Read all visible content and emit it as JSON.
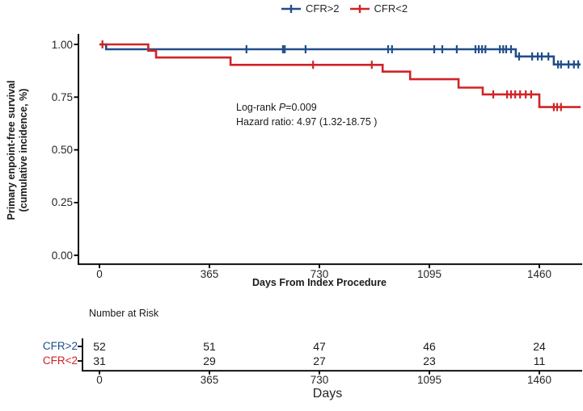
{
  "legend": {
    "items": [
      {
        "label": "CFR>2",
        "color": "#204e8a"
      },
      {
        "label": "CFR<2",
        "color": "#d02327"
      }
    ]
  },
  "y_axis": {
    "label_line1": "Primary enpoint-free survival",
    "label_line2": "(cumulative incidence, %)",
    "tick_labels": [
      "1.00",
      "0.75",
      "0.50",
      "0.25",
      "0.00"
    ],
    "tick_values": [
      1.0,
      0.75,
      0.5,
      0.25,
      0.0
    ]
  },
  "x_axis": {
    "label": "Days From Index Procedure",
    "tick_labels": [
      "0",
      "365",
      "730",
      "1095",
      "1460"
    ],
    "tick_values": [
      0,
      365,
      730,
      1095,
      1460
    ]
  },
  "annotation": {
    "line1_prefix": "Log-rank ",
    "line1_italic": "P",
    "line1_suffix": "=0.009",
    "line2": "Hazard ratio: 4.97 (1.32-18.75 )"
  },
  "risk_table": {
    "title": "Number at Risk",
    "axis_label": "Days",
    "tick_labels": [
      "0",
      "365",
      "730",
      "1095",
      "1460"
    ],
    "rows": [
      {
        "label": "CFR>2",
        "color": "#204e8a",
        "values": [
          "52",
          "51",
          "47",
          "46",
          "24"
        ]
      },
      {
        "label": "CFR<2",
        "color": "#d02327",
        "values": [
          "31",
          "29",
          "27",
          "23",
          "11"
        ]
      }
    ]
  },
  "chart_data": {
    "type": "line",
    "subtype": "kaplan-meier-step",
    "title": "",
    "xlabel": "Days From Index Procedure",
    "ylabel": "Primary enpoint-free survival (cumulative incidence, %)",
    "xlim": [
      0,
      1600
    ],
    "ylim": [
      0.0,
      1.0
    ],
    "x_ticks": [
      0,
      365,
      730,
      1095,
      1460
    ],
    "y_ticks": [
      0.0,
      0.25,
      0.5,
      0.75,
      1.0
    ],
    "grid": false,
    "legend_position": "top-center",
    "annotations": [
      "Log-rank P=0.009",
      "Hazard ratio: 4.97 (1.32-18.75 )"
    ],
    "series": [
      {
        "name": "CFR>2",
        "color": "#204e8a",
        "step_points": [
          [
            0,
            1.0
          ],
          [
            22,
            1.0
          ],
          [
            22,
            0.977
          ],
          [
            1382,
            0.977
          ],
          [
            1382,
            0.943
          ],
          [
            1508,
            0.943
          ],
          [
            1508,
            0.905
          ],
          [
            1597,
            0.905
          ]
        ],
        "censor_days": [
          488,
          609,
          615,
          684,
          958,
          971,
          1111,
          1138,
          1186,
          1248,
          1259,
          1270,
          1281,
          1329,
          1340,
          1350,
          1366,
          1393,
          1436,
          1455,
          1468,
          1490,
          1522,
          1532,
          1557,
          1575,
          1589
        ]
      },
      {
        "name": "CFR<2",
        "color": "#d02327",
        "step_points": [
          [
            0,
            1.0
          ],
          [
            162,
            1.0
          ],
          [
            162,
            0.97
          ],
          [
            188,
            0.97
          ],
          [
            188,
            0.938
          ],
          [
            435,
            0.938
          ],
          [
            435,
            0.903
          ],
          [
            940,
            0.903
          ],
          [
            940,
            0.871
          ],
          [
            1031,
            0.871
          ],
          [
            1031,
            0.835
          ],
          [
            1192,
            0.835
          ],
          [
            1192,
            0.795
          ],
          [
            1272,
            0.795
          ],
          [
            1272,
            0.763
          ],
          [
            1460,
            0.763
          ],
          [
            1460,
            0.703
          ],
          [
            1597,
            0.703
          ]
        ],
        "censor_days": [
          10,
          709,
          904,
          1307,
          1353,
          1366,
          1380,
          1396,
          1415,
          1433,
          1508,
          1519,
          1532
        ]
      }
    ],
    "number_at_risk": {
      "days": [
        0,
        365,
        730,
        1095,
        1460
      ],
      "CFR>2": [
        52,
        51,
        47,
        46,
        24
      ],
      "CFR<2": [
        31,
        29,
        27,
        23,
        11
      ]
    }
  }
}
